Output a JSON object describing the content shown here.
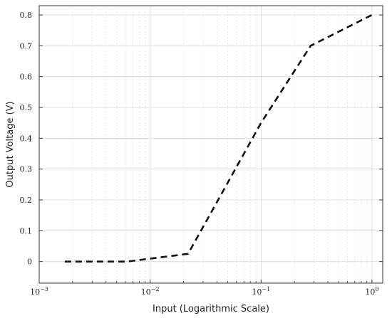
{
  "chart_data": {
    "type": "line",
    "title": "",
    "xlabel": "Input (Logarithmic Scale)",
    "ylabel": "Output Voltage (V)",
    "xscale": "log",
    "xlim": [
      0.001,
      1.25
    ],
    "ylim": [
      -0.07,
      0.83
    ],
    "x_ticks": [
      {
        "value": 0.001,
        "base": "10",
        "exp": "−3"
      },
      {
        "value": 0.01,
        "base": "10",
        "exp": "−2"
      },
      {
        "value": 0.1,
        "base": "10",
        "exp": "−1"
      },
      {
        "value": 1,
        "base": "10",
        "exp": "0"
      }
    ],
    "y_ticks": [
      0,
      0.1,
      0.2,
      0.3,
      0.4,
      0.5,
      0.6,
      0.7,
      0.8
    ],
    "y_tick_labels": [
      "0",
      "0.1",
      "0.2",
      "0.3",
      "0.4",
      "0.5",
      "0.6",
      "0.7",
      "0.8"
    ],
    "grid": true,
    "legend": "none",
    "line_color": "#111111",
    "line_style": "dashed",
    "series": [
      {
        "x": [
          0.0017,
          0.0062,
          0.022,
          0.1,
          0.28,
          1.0
        ],
        "y": [
          0.0,
          0.0,
          0.025,
          0.45,
          0.7,
          0.8
        ]
      }
    ]
  }
}
